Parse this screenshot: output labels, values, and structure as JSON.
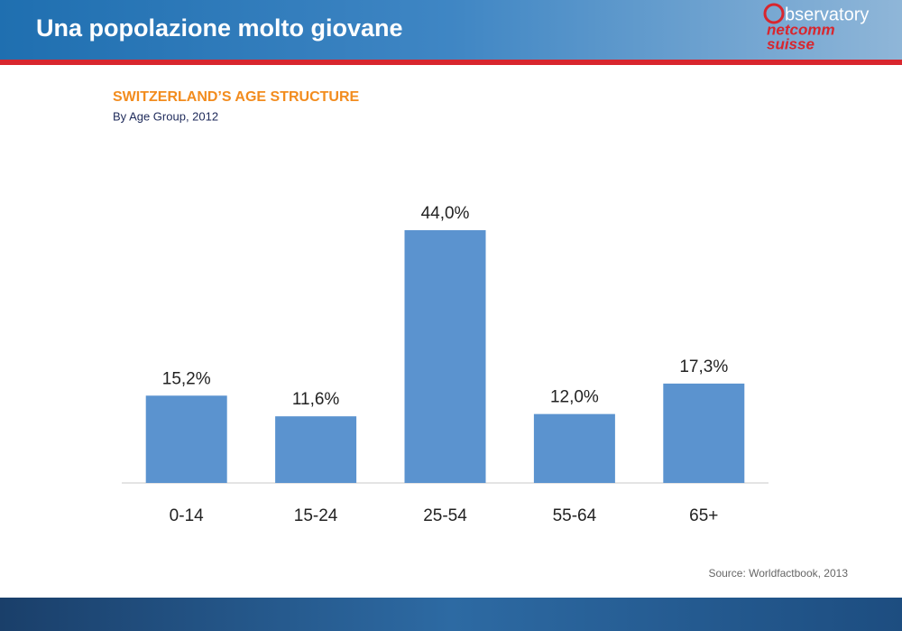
{
  "slide": {
    "title": "Una popolazione molto giovane",
    "logo": [
      "bservatory",
      "netcomm",
      "suisse"
    ]
  },
  "chart_data": {
    "type": "bar",
    "title": "SWITZERLAND’S AGE STRUCTURE",
    "subtitle": "By Age Group, 2012",
    "categories": [
      "0-14",
      "15-24",
      "25-54",
      "55-64",
      "65+"
    ],
    "values": [
      15.2,
      11.6,
      44.0,
      12.0,
      17.3
    ],
    "value_labels": [
      "15,2%",
      "11,6%",
      "44,0%",
      "12,0%",
      "17,3%"
    ],
    "color": "#5b93cf",
    "source": "Source: Worldfactbook, 2013"
  }
}
